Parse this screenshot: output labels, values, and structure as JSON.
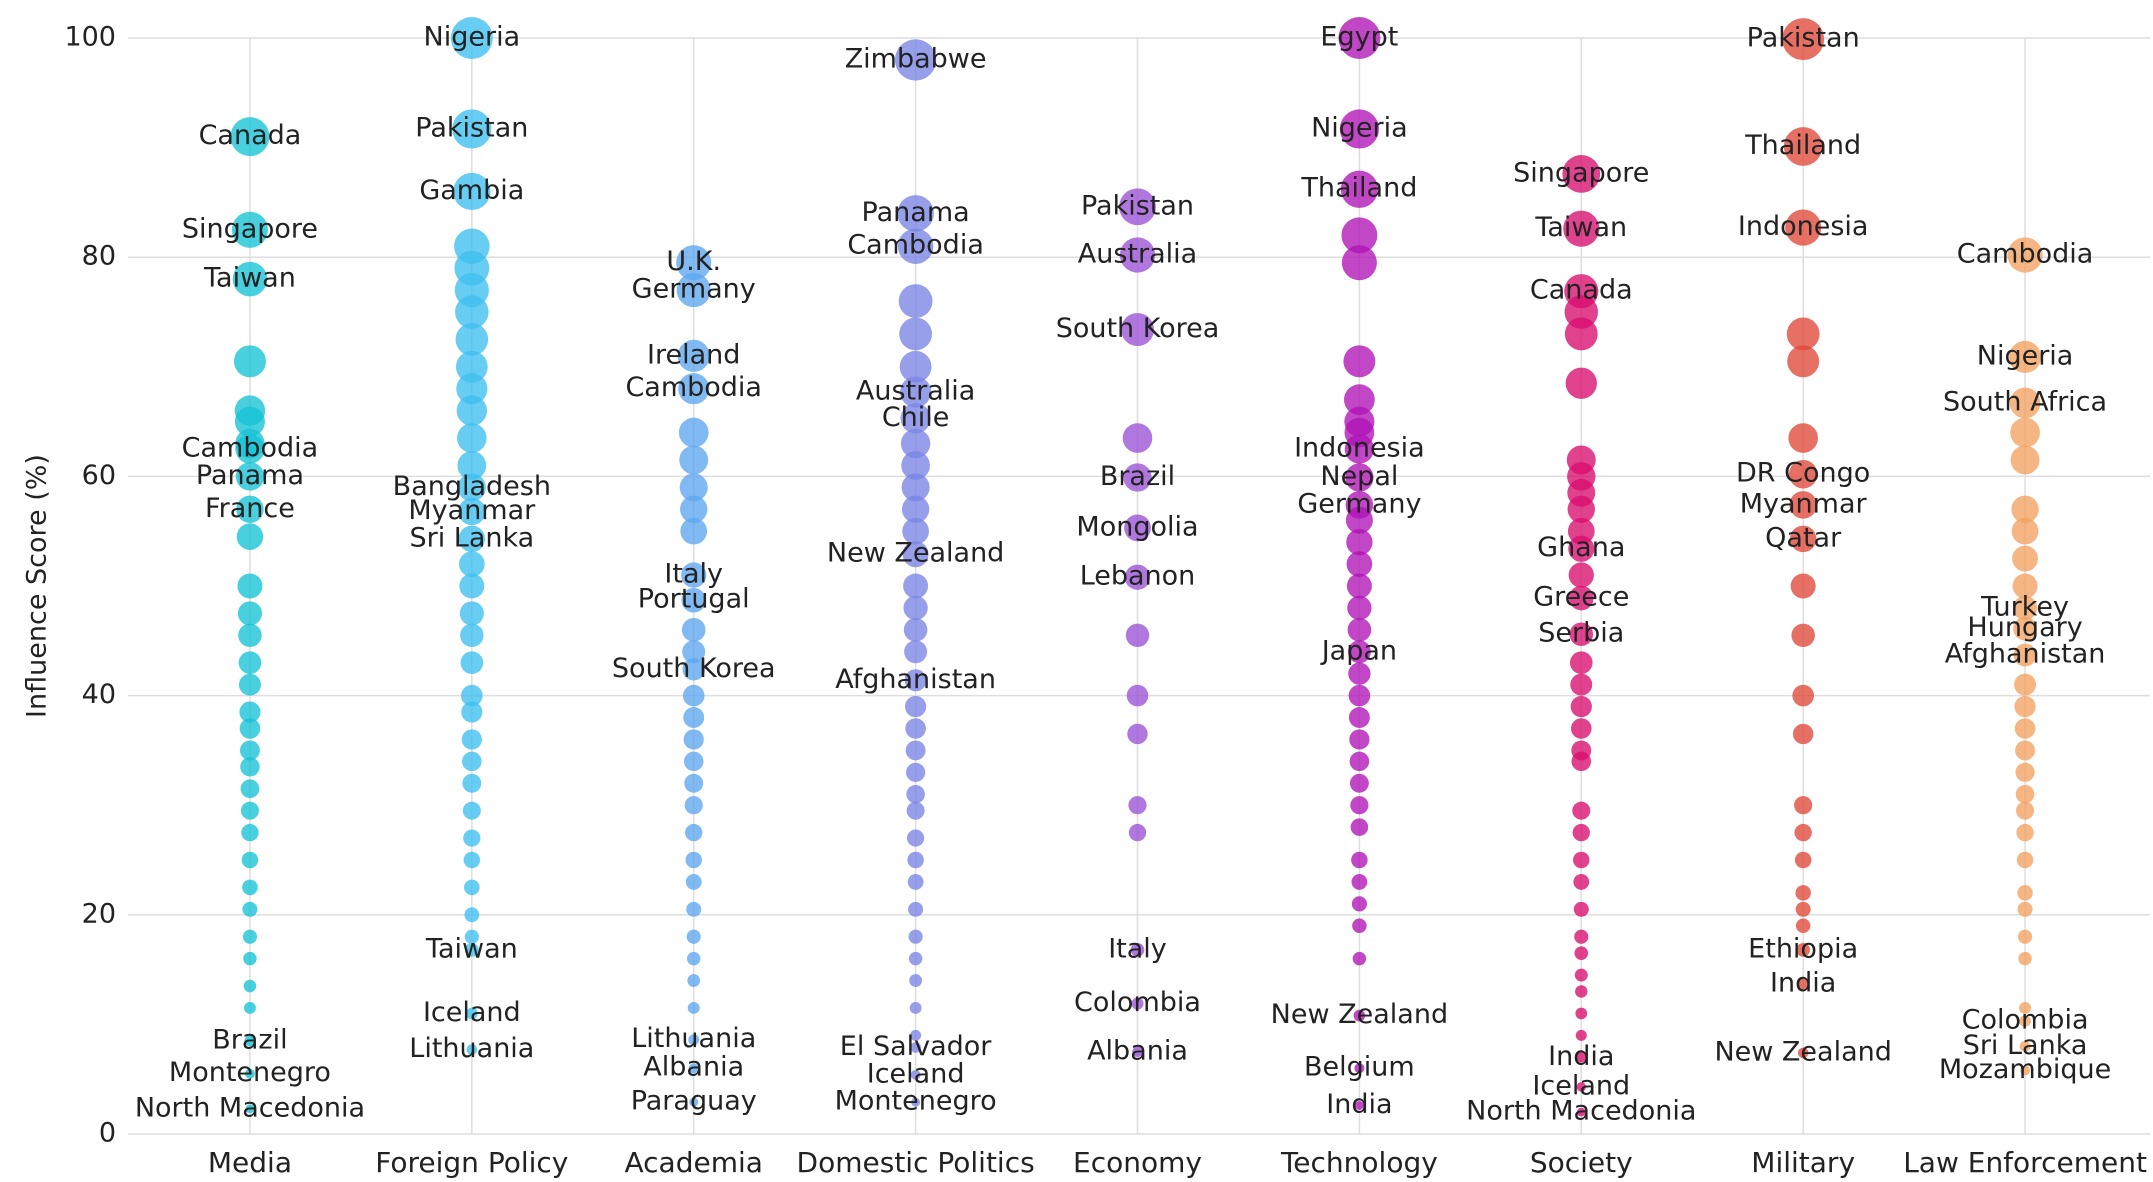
{
  "chart_data": {
    "type": "strip",
    "ylabel": "Influence Score (%)",
    "ylim": [
      0,
      100
    ],
    "yticks": [
      0,
      20,
      40,
      60,
      80,
      100
    ],
    "grid": true,
    "categories": [
      "Media",
      "Foreign Policy",
      "Academia",
      "Domestic Politics",
      "Economy",
      "Technology",
      "Society",
      "Military",
      "Law Enforcement"
    ],
    "series": [
      {
        "color": "#14c3d6",
        "values": [
          91,
          82.5,
          78,
          62.5,
          60,
          57,
          8.5,
          5.5,
          2.3,
          70.5,
          66,
          65,
          63,
          54.5,
          50,
          47.5,
          45.5,
          43,
          41,
          38.5,
          37,
          35,
          33.5,
          31.5,
          29.5,
          27.5,
          25,
          22.5,
          20.5,
          18,
          16,
          13.5,
          11.5
        ],
        "labels": [
          "Canada",
          "Singapore",
          "Taiwan",
          "Cambodia",
          "Panama",
          "France",
          "Brazil",
          "Montenegro",
          "North Macedonia",
          null,
          null,
          null,
          null,
          null,
          null,
          null,
          null,
          null,
          null,
          null,
          null,
          null,
          null,
          null,
          null,
          null,
          null,
          null,
          null,
          null,
          null,
          null,
          null
        ]
      },
      {
        "color": "#3ebff0",
        "values": [
          100,
          91.7,
          86,
          59,
          56.8,
          54.3,
          16.8,
          11,
          7.7,
          81,
          79,
          77,
          75,
          72.5,
          70,
          68,
          66,
          63.5,
          61,
          52,
          50,
          47.5,
          45.5,
          43,
          40,
          38.5,
          36,
          34,
          32,
          29.5,
          27,
          25,
          22.5,
          20,
          18
        ],
        "labels": [
          "Nigeria",
          "Pakistan",
          "Gambia",
          "Bangladesh",
          "Myanmar",
          "Sri Lanka",
          "Taiwan",
          "Iceland",
          "Lithuania",
          null,
          null,
          null,
          null,
          null,
          null,
          null,
          null,
          null,
          null,
          null,
          null,
          null,
          null,
          null,
          null,
          null,
          null,
          null,
          null,
          null,
          null,
          null,
          null,
          null,
          null
        ]
      },
      {
        "color": "#5ea6f0",
        "values": [
          79.5,
          77,
          71,
          68,
          51,
          48.7,
          42.4,
          8.6,
          6,
          2.9,
          64,
          61.5,
          59,
          57,
          55,
          46,
          44,
          40,
          38,
          36,
          34,
          32,
          30,
          27.5,
          25,
          23,
          20.5,
          18,
          16,
          14,
          11.5
        ],
        "labels": [
          "U.K.",
          "Germany",
          "Ireland",
          "Cambodia",
          "Italy",
          "Portugal",
          "South Korea",
          "Lithuania",
          "Albania",
          "Paraguay",
          null,
          null,
          null,
          null,
          null,
          null,
          null,
          null,
          null,
          null,
          null,
          null,
          null,
          null,
          null,
          null,
          null,
          null,
          null,
          null,
          null
        ]
      },
      {
        "color": "#7a84e6",
        "values": [
          98,
          84,
          81,
          67.7,
          65.3,
          52.9,
          41.4,
          7.9,
          5.4,
          2.9,
          76,
          73,
          70,
          63,
          61,
          59,
          57,
          55,
          50,
          48,
          46,
          44,
          39,
          37,
          35,
          33,
          31,
          29.5,
          27,
          25,
          23,
          20.5,
          18,
          16,
          14,
          11.5,
          9
        ],
        "labels": [
          "Zimbabwe",
          "Panama",
          "Cambodia",
          "Australia",
          "Chile",
          "New Zealand",
          "Afghanistan",
          "El Salvador",
          "Iceland",
          "Montenegro",
          null,
          null,
          null,
          null,
          null,
          null,
          null,
          null,
          null,
          null,
          null,
          null,
          null,
          null,
          null,
          null,
          null,
          null,
          null,
          null,
          null,
          null,
          null,
          null,
          null,
          null,
          null
        ]
      },
      {
        "color": "#9a52d6",
        "values": [
          84.6,
          80.2,
          73.4,
          59.9,
          55.3,
          50.8,
          16.8,
          11.9,
          7.5,
          63.5,
          45.5,
          40,
          36.5,
          30,
          27.5
        ],
        "labels": [
          "Pakistan",
          "Australia",
          "South Korea",
          "Brazil",
          "Mongolia",
          "Lebanon",
          "Italy",
          "Colombia",
          "Albania",
          null,
          null,
          null,
          null,
          null,
          null
        ]
      },
      {
        "color": "#b013b6",
        "values": [
          100,
          91.7,
          86.2,
          62.5,
          59.9,
          57.4,
          44,
          10.8,
          6,
          2.6,
          82,
          79.5,
          70.5,
          67,
          65,
          64,
          56,
          54,
          52,
          50,
          48,
          46,
          42,
          40,
          38,
          36,
          34,
          32,
          30,
          28,
          25,
          23,
          21,
          19,
          16
        ],
        "labels": [
          "Egypt",
          "Nigeria",
          "Thailand",
          "Indonesia",
          "Nepal",
          "Germany",
          "Japan",
          "New Zealand",
          "Belgium",
          "India",
          null,
          null,
          null,
          null,
          null,
          null,
          null,
          null,
          null,
          null,
          null,
          null,
          null,
          null,
          null,
          null,
          null,
          null,
          null,
          null,
          null,
          null,
          null,
          null,
          null
        ]
      },
      {
        "color": "#d80d6e",
        "values": [
          87.6,
          82.6,
          76.9,
          53.4,
          48.9,
          45.6,
          7,
          4.3,
          2,
          75,
          73,
          68.5,
          61.5,
          60,
          58.5,
          57,
          55,
          51,
          43,
          41,
          39,
          37,
          35,
          34,
          29.5,
          27.5,
          25,
          23,
          20.5,
          18,
          16.5,
          14.5,
          13,
          11,
          9
        ],
        "labels": [
          "Singapore",
          "Taiwan",
          "Canada",
          "Ghana",
          "Greece",
          "Serbia",
          "India",
          "Iceland",
          "North Macedonia",
          null,
          null,
          null,
          null,
          null,
          null,
          null,
          null,
          null,
          null,
          null,
          null,
          null,
          null,
          null,
          null,
          null,
          null,
          null,
          null,
          null,
          null,
          null,
          null,
          null,
          null
        ]
      },
      {
        "color": "#e0483a",
        "values": [
          99.9,
          90.1,
          82.7,
          60.2,
          57.4,
          54.3,
          16.8,
          13.7,
          7.4,
          73,
          70.5,
          63.5,
          50,
          45.5,
          40,
          36.5,
          30,
          27.5,
          25,
          22,
          20.5,
          19
        ],
        "labels": [
          "Pakistan",
          "Thailand",
          "Indonesia",
          "DR Congo",
          "Myanmar",
          "Qatar",
          "Ethiopia",
          "India",
          "New Zealand",
          null,
          null,
          null,
          null,
          null,
          null,
          null,
          null,
          null,
          null,
          null,
          null,
          null
        ]
      },
      {
        "color": "#f3a262",
        "values": [
          80.2,
          70.9,
          66.7,
          48,
          46.1,
          43.7,
          10.3,
          8,
          5.8,
          64,
          61.5,
          57,
          55,
          52.5,
          50,
          41,
          39,
          37,
          35,
          33,
          31,
          29.5,
          27.5,
          25,
          22,
          20.5,
          18,
          16,
          11.5
        ],
        "labels": [
          "Cambodia",
          "Nigeria",
          "South Africa",
          "Turkey",
          "Hungary",
          "Afghanistan",
          "Colombia",
          "Sri Lanka",
          "Mozambique",
          null,
          null,
          null,
          null,
          null,
          null,
          null,
          null,
          null,
          null,
          null,
          null,
          null,
          null,
          null,
          null,
          null,
          null,
          null,
          null
        ]
      }
    ]
  }
}
